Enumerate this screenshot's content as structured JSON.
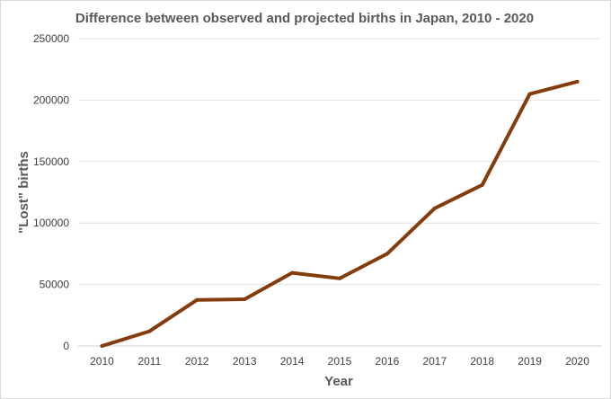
{
  "chart_data": {
    "type": "line",
    "title": "Difference between observed and projected births in Japan, 2010 - 2020",
    "xlabel": "Year",
    "ylabel": "\"Lost\" births",
    "categories": [
      "2010",
      "2011",
      "2012",
      "2013",
      "2014",
      "2015",
      "2016",
      "2017",
      "2018",
      "2019",
      "2020"
    ],
    "series": [
      {
        "values": [
          0,
          12000,
          37500,
          38000,
          59500,
          55000,
          75000,
          112000,
          131000,
          205000,
          215000
        ],
        "color": "#843c0c"
      }
    ],
    "ylim": [
      0,
      250000
    ],
    "yticks": [
      "0",
      "50000",
      "100000",
      "150000",
      "200000",
      "250000"
    ],
    "grid": "horizontal",
    "legend": "none"
  }
}
